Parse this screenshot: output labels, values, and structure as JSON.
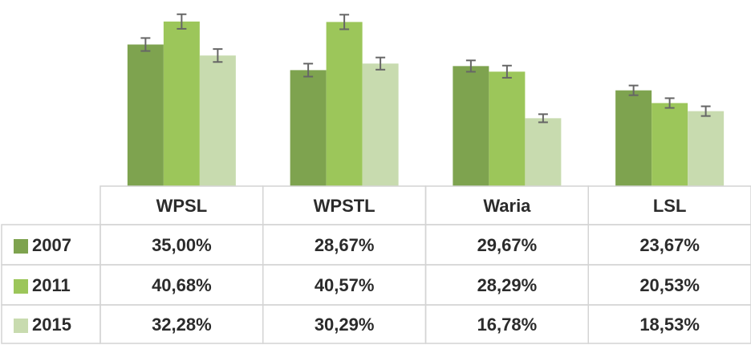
{
  "chart_data": {
    "type": "bar",
    "categories": [
      "WPSL",
      "WPSTL",
      "Waria",
      "LSL"
    ],
    "series": [
      {
        "name": "2007",
        "color": "#7ea34f",
        "values": [
          35.0,
          28.67,
          29.67,
          23.67
        ],
        "value_labels": [
          "35,00%",
          "28,67%",
          "29,67%",
          "23,67%"
        ],
        "errors": [
          1.6,
          1.6,
          1.4,
          1.2
        ]
      },
      {
        "name": "2011",
        "color": "#9cc65a",
        "values": [
          40.68,
          40.57,
          28.29,
          20.53
        ],
        "value_labels": [
          "40,68%",
          "40,57%",
          "28,29%",
          "20,53%"
        ],
        "errors": [
          1.8,
          1.8,
          1.5,
          1.2
        ]
      },
      {
        "name": "2015",
        "color": "#c8dbaf",
        "values": [
          32.28,
          30.29,
          16.78,
          18.53
        ],
        "value_labels": [
          "32,28%",
          "30,29%",
          "16,78%",
          "18,53%"
        ],
        "errors": [
          1.6,
          1.5,
          1.0,
          1.2
        ]
      }
    ],
    "ylim": [
      0,
      46
    ]
  }
}
